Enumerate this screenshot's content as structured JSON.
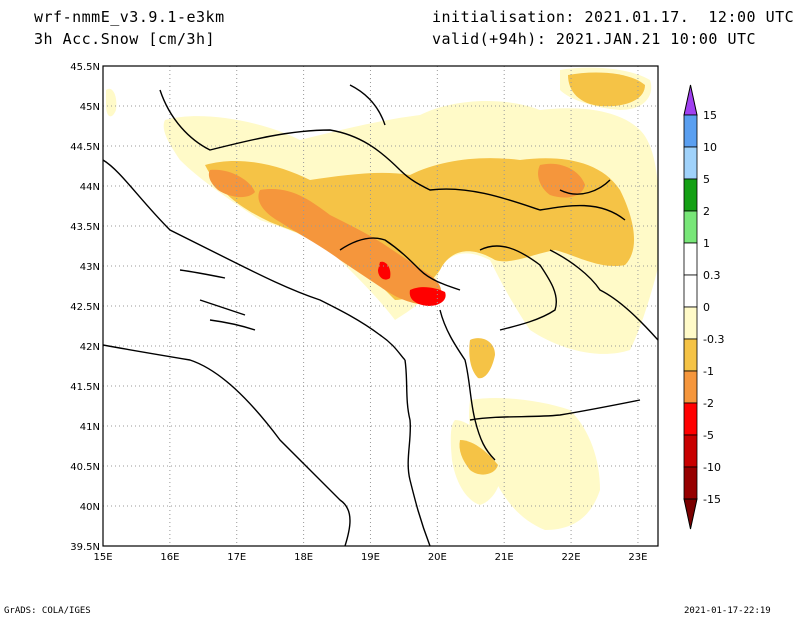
{
  "header": {
    "model": "wrf-nmmE_v3.9.1-e3km",
    "variable": "3h Acc.Snow [cm/3h]",
    "init": "initialisation: 2021.01.17.  12:00 UTC",
    "valid": "valid(+94h): 2021.JAN.21 10:00 UTC"
  },
  "footer": {
    "left": "GrADS: COLA/IGES",
    "right": "2021-01-17-22:19"
  },
  "map": {
    "lon_range": [
      15,
      23.3
    ],
    "lat_range": [
      39.5,
      45.5
    ],
    "lon_labels": [
      "15E",
      "16E",
      "17E",
      "18E",
      "19E",
      "20E",
      "21E",
      "22E",
      "23E"
    ],
    "lat_labels": [
      "45.5N",
      "45N",
      "44.5N",
      "44N",
      "43.5N",
      "43N",
      "42.5N",
      "42N",
      "41.5N",
      "41N",
      "40.5N",
      "40N",
      "39.5N"
    ],
    "lat_values": [
      45.5,
      45,
      44.5,
      44,
      43.5,
      43,
      42.5,
      42,
      41.5,
      41,
      40.5,
      40,
      39.5
    ],
    "lon_values": [
      15,
      16,
      17,
      18,
      19,
      20,
      21,
      22,
      23
    ]
  },
  "colorbar": {
    "labels": [
      "15",
      "10",
      "5",
      "2",
      "1",
      "0.3",
      "0",
      "-0.3",
      "-1",
      "-2",
      "-5",
      "-10",
      "-15"
    ],
    "colors": [
      "#2323e6",
      "#5a9ff0",
      "#a0d2fa",
      "#14a014",
      "#78e678",
      "#ffffff",
      "#ffffff",
      "#fffac8",
      "#f5c346",
      "#f5963c",
      "#ff0000",
      "#c80000",
      "#960000"
    ],
    "top_arrow_color": "#a040f0",
    "bottom_arrow_color": "#7a0000"
  },
  "colors": {
    "lightest": "#fffac8",
    "light": "#f5c346",
    "medium": "#f5963c",
    "strong": "#ff0000",
    "extreme": "#c80000"
  }
}
